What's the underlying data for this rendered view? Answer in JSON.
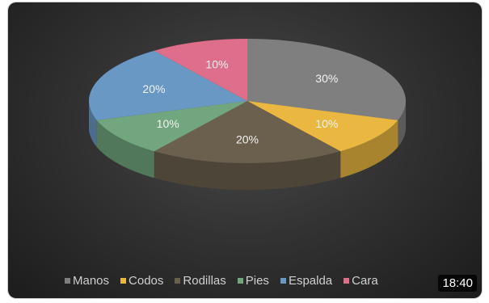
{
  "chart_data": {
    "type": "pie",
    "style": "3d",
    "categories": [
      "Manos",
      "Codos",
      "Rodillas",
      "Pies",
      "Espalda",
      "Cara"
    ],
    "values": [
      30,
      10,
      20,
      10,
      20,
      10
    ],
    "data_labels": [
      "30%",
      "10%",
      "20%",
      "10%",
      "20%",
      "10%"
    ],
    "colors": [
      "#7f7f7f",
      "#eab841",
      "#6b604e",
      "#72a67e",
      "#6a98c4",
      "#de6e8a"
    ],
    "legend_position": "bottom"
  },
  "video": {
    "duration": "18:40"
  }
}
